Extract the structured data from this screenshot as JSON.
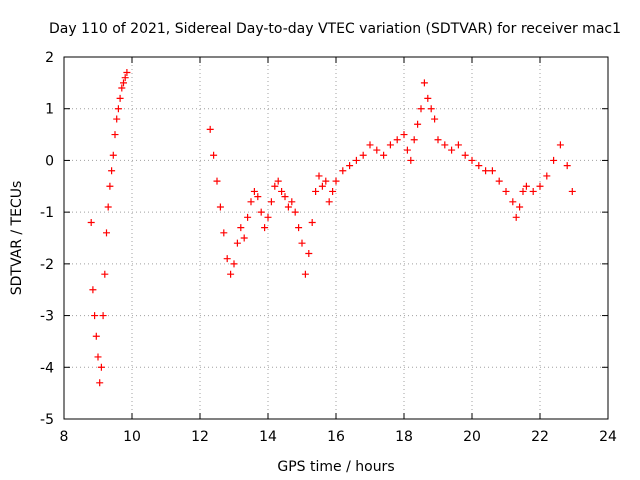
{
  "chart_data": {
    "type": "scatter",
    "title": "Day 110 of 2021, Sidereal Day-to-day VTEC variation (SDTVAR) for receiver mac1",
    "xlabel": "GPS time / hours",
    "ylabel": "SDTVAR / TECUs",
    "xlim": [
      8,
      24
    ],
    "ylim": [
      -5,
      2
    ],
    "xticks": [
      8,
      10,
      12,
      14,
      16,
      18,
      20,
      22,
      24
    ],
    "yticks": [
      -5,
      -4,
      -3,
      -2,
      -1,
      0,
      1,
      2
    ],
    "grid": true,
    "marker": "+",
    "marker_color": "#ff0000",
    "series": [
      {
        "name": "SDTVAR",
        "x": [
          8.8,
          8.85,
          8.9,
          8.95,
          9.0,
          9.05,
          9.1,
          9.15,
          9.2,
          9.25,
          9.3,
          9.35,
          9.4,
          9.45,
          9.5,
          9.55,
          9.6,
          9.65,
          9.7,
          9.75,
          9.8,
          9.85,
          12.3,
          12.4,
          12.5,
          12.6,
          12.7,
          12.8,
          12.9,
          13.0,
          13.1,
          13.2,
          13.3,
          13.4,
          13.5,
          13.6,
          13.7,
          13.8,
          13.9,
          14.0,
          14.1,
          14.2,
          14.3,
          14.4,
          14.5,
          14.6,
          14.7,
          14.8,
          14.9,
          15.0,
          15.1,
          15.2,
          15.3,
          15.4,
          15.5,
          15.6,
          15.7,
          15.8,
          15.9,
          16.0,
          16.2,
          16.4,
          16.6,
          16.8,
          17.0,
          17.2,
          17.4,
          17.6,
          17.8,
          18.0,
          18.1,
          18.2,
          18.3,
          18.4,
          18.5,
          18.6,
          18.7,
          18.8,
          18.9,
          19.0,
          19.2,
          19.4,
          19.6,
          19.8,
          20.0,
          20.2,
          20.4,
          20.6,
          20.8,
          21.0,
          21.2,
          21.3,
          21.4,
          21.5,
          21.6,
          21.8,
          22.0,
          22.2,
          22.4,
          22.6,
          22.8,
          22.95
        ],
        "y": [
          -1.2,
          -2.5,
          -3.0,
          -3.4,
          -3.8,
          -4.3,
          -4.0,
          -3.0,
          -2.2,
          -1.4,
          -0.9,
          -0.5,
          -0.2,
          0.1,
          0.5,
          0.8,
          1.0,
          1.2,
          1.4,
          1.5,
          1.6,
          1.7,
          0.6,
          0.1,
          -0.4,
          -0.9,
          -1.4,
          -1.9,
          -2.2,
          -2.0,
          -1.6,
          -1.3,
          -1.5,
          -1.1,
          -0.8,
          -0.6,
          -0.7,
          -1.0,
          -1.3,
          -1.1,
          -0.8,
          -0.5,
          -0.4,
          -0.6,
          -0.7,
          -0.9,
          -0.8,
          -1.0,
          -1.3,
          -1.6,
          -2.2,
          -1.8,
          -1.2,
          -0.6,
          -0.3,
          -0.5,
          -0.4,
          -0.8,
          -0.6,
          -0.4,
          -0.2,
          -0.1,
          0.0,
          0.1,
          0.3,
          0.2,
          0.1,
          0.3,
          0.4,
          0.5,
          0.2,
          0.0,
          0.4,
          0.7,
          1.0,
          1.5,
          1.2,
          1.0,
          0.8,
          0.4,
          0.3,
          0.2,
          0.3,
          0.1,
          0.0,
          -0.1,
          -0.2,
          -0.2,
          -0.4,
          -0.6,
          -0.8,
          -1.1,
          -0.9,
          -0.6,
          -0.5,
          -0.6,
          -0.5,
          -0.3,
          0.0,
          0.3,
          -0.1,
          -0.6
        ]
      }
    ]
  }
}
